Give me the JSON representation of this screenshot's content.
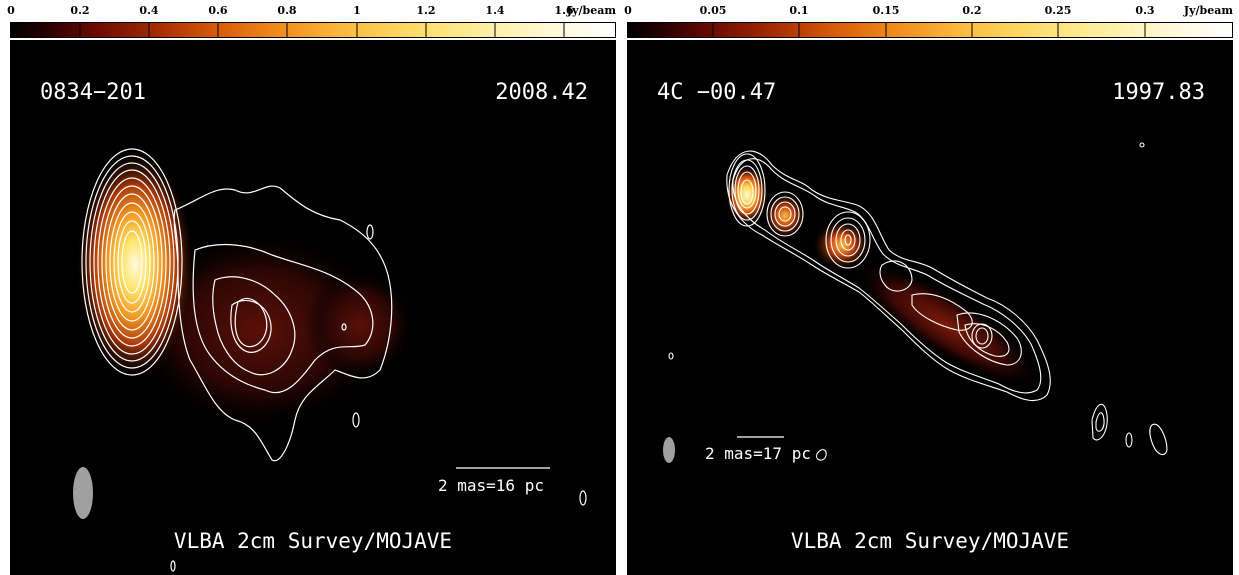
{
  "panels": [
    {
      "source": "0834−201",
      "epoch": "2008.42",
      "scale_label": "2 mas=16 pc",
      "footer": "VLBA 2cm Survey/MOJAVE",
      "colorbar": {
        "unit": "Jy/beam",
        "ticks": [
          "0",
          "0.2",
          "0.4",
          "0.6",
          "0.8",
          "1",
          "1.2",
          "1.4",
          "1.6"
        ]
      }
    },
    {
      "source": "4C −00.47",
      "epoch": "1997.83",
      "scale_label": "2 mas=17 pc",
      "footer": "VLBA 2cm Survey/MOJAVE",
      "colorbar": {
        "unit": "Jy/beam",
        "ticks": [
          "0",
          "0.05",
          "0.1",
          "0.15",
          "0.2",
          "0.25",
          "0.3"
        ]
      }
    }
  ],
  "colors": {
    "background": "#000000",
    "contour": "#ffffff",
    "beam": "#a0a0a0"
  }
}
